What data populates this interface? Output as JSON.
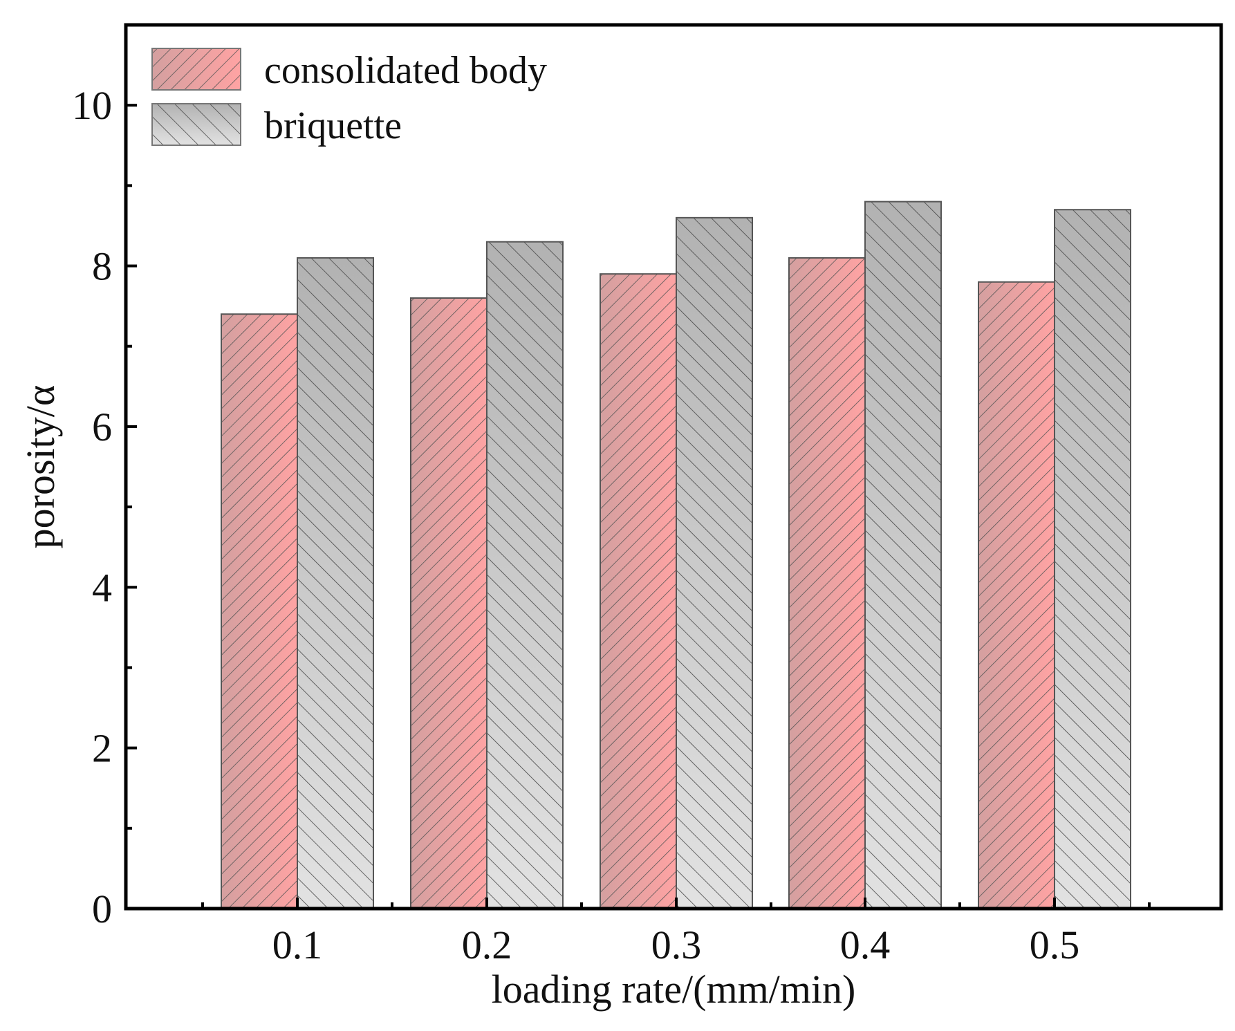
{
  "chart_data": {
    "type": "bar",
    "title": "",
    "xlabel": "loading rate/(mm/min)",
    "ylabel": "porosity/α",
    "categories": [
      "0.1",
      "0.2",
      "0.3",
      "0.4",
      "0.5"
    ],
    "series": [
      {
        "name": "consolidated body",
        "values": [
          7.4,
          7.6,
          7.9,
          8.1,
          7.8
        ],
        "color": "#ff9fa0",
        "hatch": "forward"
      },
      {
        "name": "briquette",
        "values": [
          8.1,
          8.3,
          8.6,
          8.8,
          8.7
        ],
        "color": "#c0c0c0",
        "hatch": "backward"
      }
    ],
    "ylim": [
      0,
      11
    ],
    "yticks": [
      "0",
      "2",
      "4",
      "6",
      "8",
      "10"
    ],
    "legend_position": "top-left",
    "grid": false
  }
}
